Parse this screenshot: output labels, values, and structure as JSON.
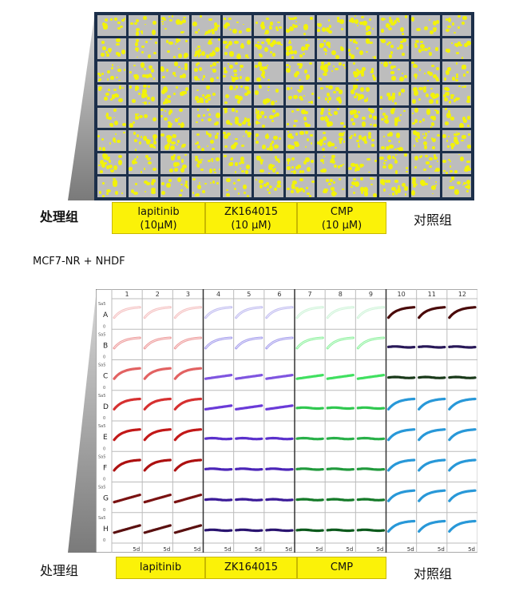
{
  "top": {
    "rows": 8,
    "cols": 12,
    "left_label": "处理组",
    "right_label": "对照组",
    "groups": [
      {
        "line1": "lapitinib",
        "line2": "(10μM)"
      },
      {
        "line1": "ZK164015",
        "line2": "(10 μM)"
      },
      {
        "line1": "CMP",
        "line2": "(10 μM)"
      }
    ],
    "colors": {
      "plate_bg": "#1c2f4a",
      "well": "#bdbdbd",
      "cells": "#f2f20a",
      "treatment": "#fbf208"
    }
  },
  "section_title": "MCF7-NR + NHDF",
  "bottom": {
    "col_numbers": [
      "1",
      "2",
      "3",
      "4",
      "5",
      "6",
      "7",
      "8",
      "9",
      "10",
      "11",
      "12"
    ],
    "row_letters": [
      "A",
      "B",
      "C",
      "D",
      "E",
      "F",
      "G",
      "H"
    ],
    "y_top_tick": "Sa5",
    "y_zero_tick": "0",
    "x_tick": "5d",
    "left_label": "处理组",
    "right_label": "对照组",
    "groups": [
      "lapitinib",
      "ZK164015",
      "CMP"
    ],
    "row_colors": {
      "lapitinib": [
        "#f3b8b8",
        "#eb8c8c",
        "#e26262",
        "#d63030",
        "#c21818",
        "#ad1010",
        "#7a1212",
        "#5a1010"
      ],
      "ZK164015": [
        "#b8b4ee",
        "#9990ea",
        "#7f55e0",
        "#6a3ad8",
        "#5a30cc",
        "#4b25b8",
        "#3a1a98",
        "#2a1470"
      ],
      "CMP": [
        "#c8f2d4",
        "#7ef090",
        "#40e060",
        "#30c850",
        "#28b048",
        "#209a3c",
        "#147a28",
        "#0c5a1c"
      ],
      "control": {
        "A": "#4a0a0a",
        "B": "#281858",
        "C": "#1a3a1a",
        "D_H": "#2898d8"
      }
    }
  }
}
